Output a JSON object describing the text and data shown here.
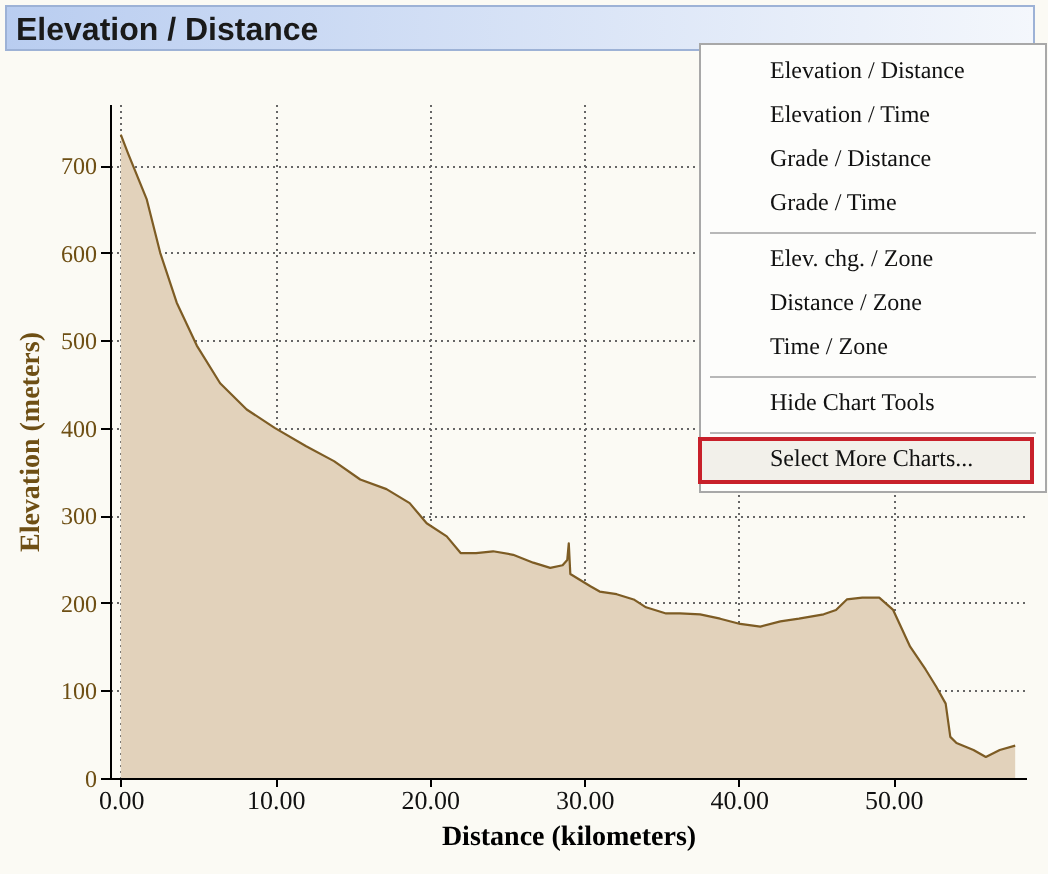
{
  "chart_data": {
    "type": "area",
    "title": "Elevation / Distance",
    "xlabel": "Distance (kilometers)",
    "ylabel": "Elevation (meters)",
    "x": [
      0,
      0.48,
      1.68,
      2.55,
      3.62,
      4.92,
      6.43,
      8.15,
      9.96,
      12.0,
      13.8,
      15.5,
      17.2,
      18.7,
      19.8,
      21.1,
      22.0,
      23.0,
      24.1,
      25.4,
      26.7,
      27.8,
      28.6,
      28.9,
      29.0,
      29.1,
      30.4,
      31.0,
      32.1,
      33.2,
      34.0,
      35.3,
      36.2,
      37.5,
      38.8,
      40.1,
      41.4,
      42.7,
      43.9,
      45.5,
      46.3,
      47.0,
      48.0,
      49.1,
      50.0,
      51.1,
      52.1,
      52.8,
      53.4,
      53.7,
      54.1,
      55.2,
      56.0,
      56.9,
      57.9
    ],
    "series": [
      {
        "color": "#e2d2bb",
        "values": [
          735,
          713,
          661,
          600,
          543,
          494,
          451,
          421,
          400,
          379,
          362,
          341,
          330,
          314,
          291,
          276,
          257,
          257,
          259,
          255,
          246,
          240,
          243,
          249,
          268,
          233,
          219,
          213,
          210,
          204,
          195,
          188,
          188,
          187,
          182,
          176,
          173,
          179,
          182,
          187,
          192,
          204,
          206,
          206,
          192,
          150,
          124,
          104,
          85,
          47,
          40,
          32,
          24,
          32,
          37
        ]
      }
    ],
    "xlim": [
      -0.7,
      58.6
    ],
    "ylim": [
      0,
      770
    ],
    "xticks": [
      {
        "value": 0,
        "label": "0.00"
      },
      {
        "value": 10,
        "label": "10.00"
      },
      {
        "value": 20,
        "label": "20.00"
      },
      {
        "value": 30,
        "label": "30.00"
      },
      {
        "value": 40,
        "label": "40.00"
      },
      {
        "value": 50,
        "label": "50.00"
      }
    ],
    "yticks": [
      0,
      100,
      200,
      300,
      400,
      500,
      600,
      700
    ],
    "grid": true,
    "annotations": [
      "Elevation / Distance",
      "Elevation / Time",
      "Grade / Distance",
      "Grade / Time",
      "Elev. chg. / Zone",
      "Distance / Zone",
      "Time / Zone",
      "Hide Chart Tools",
      "Select More Charts..."
    ]
  }
}
